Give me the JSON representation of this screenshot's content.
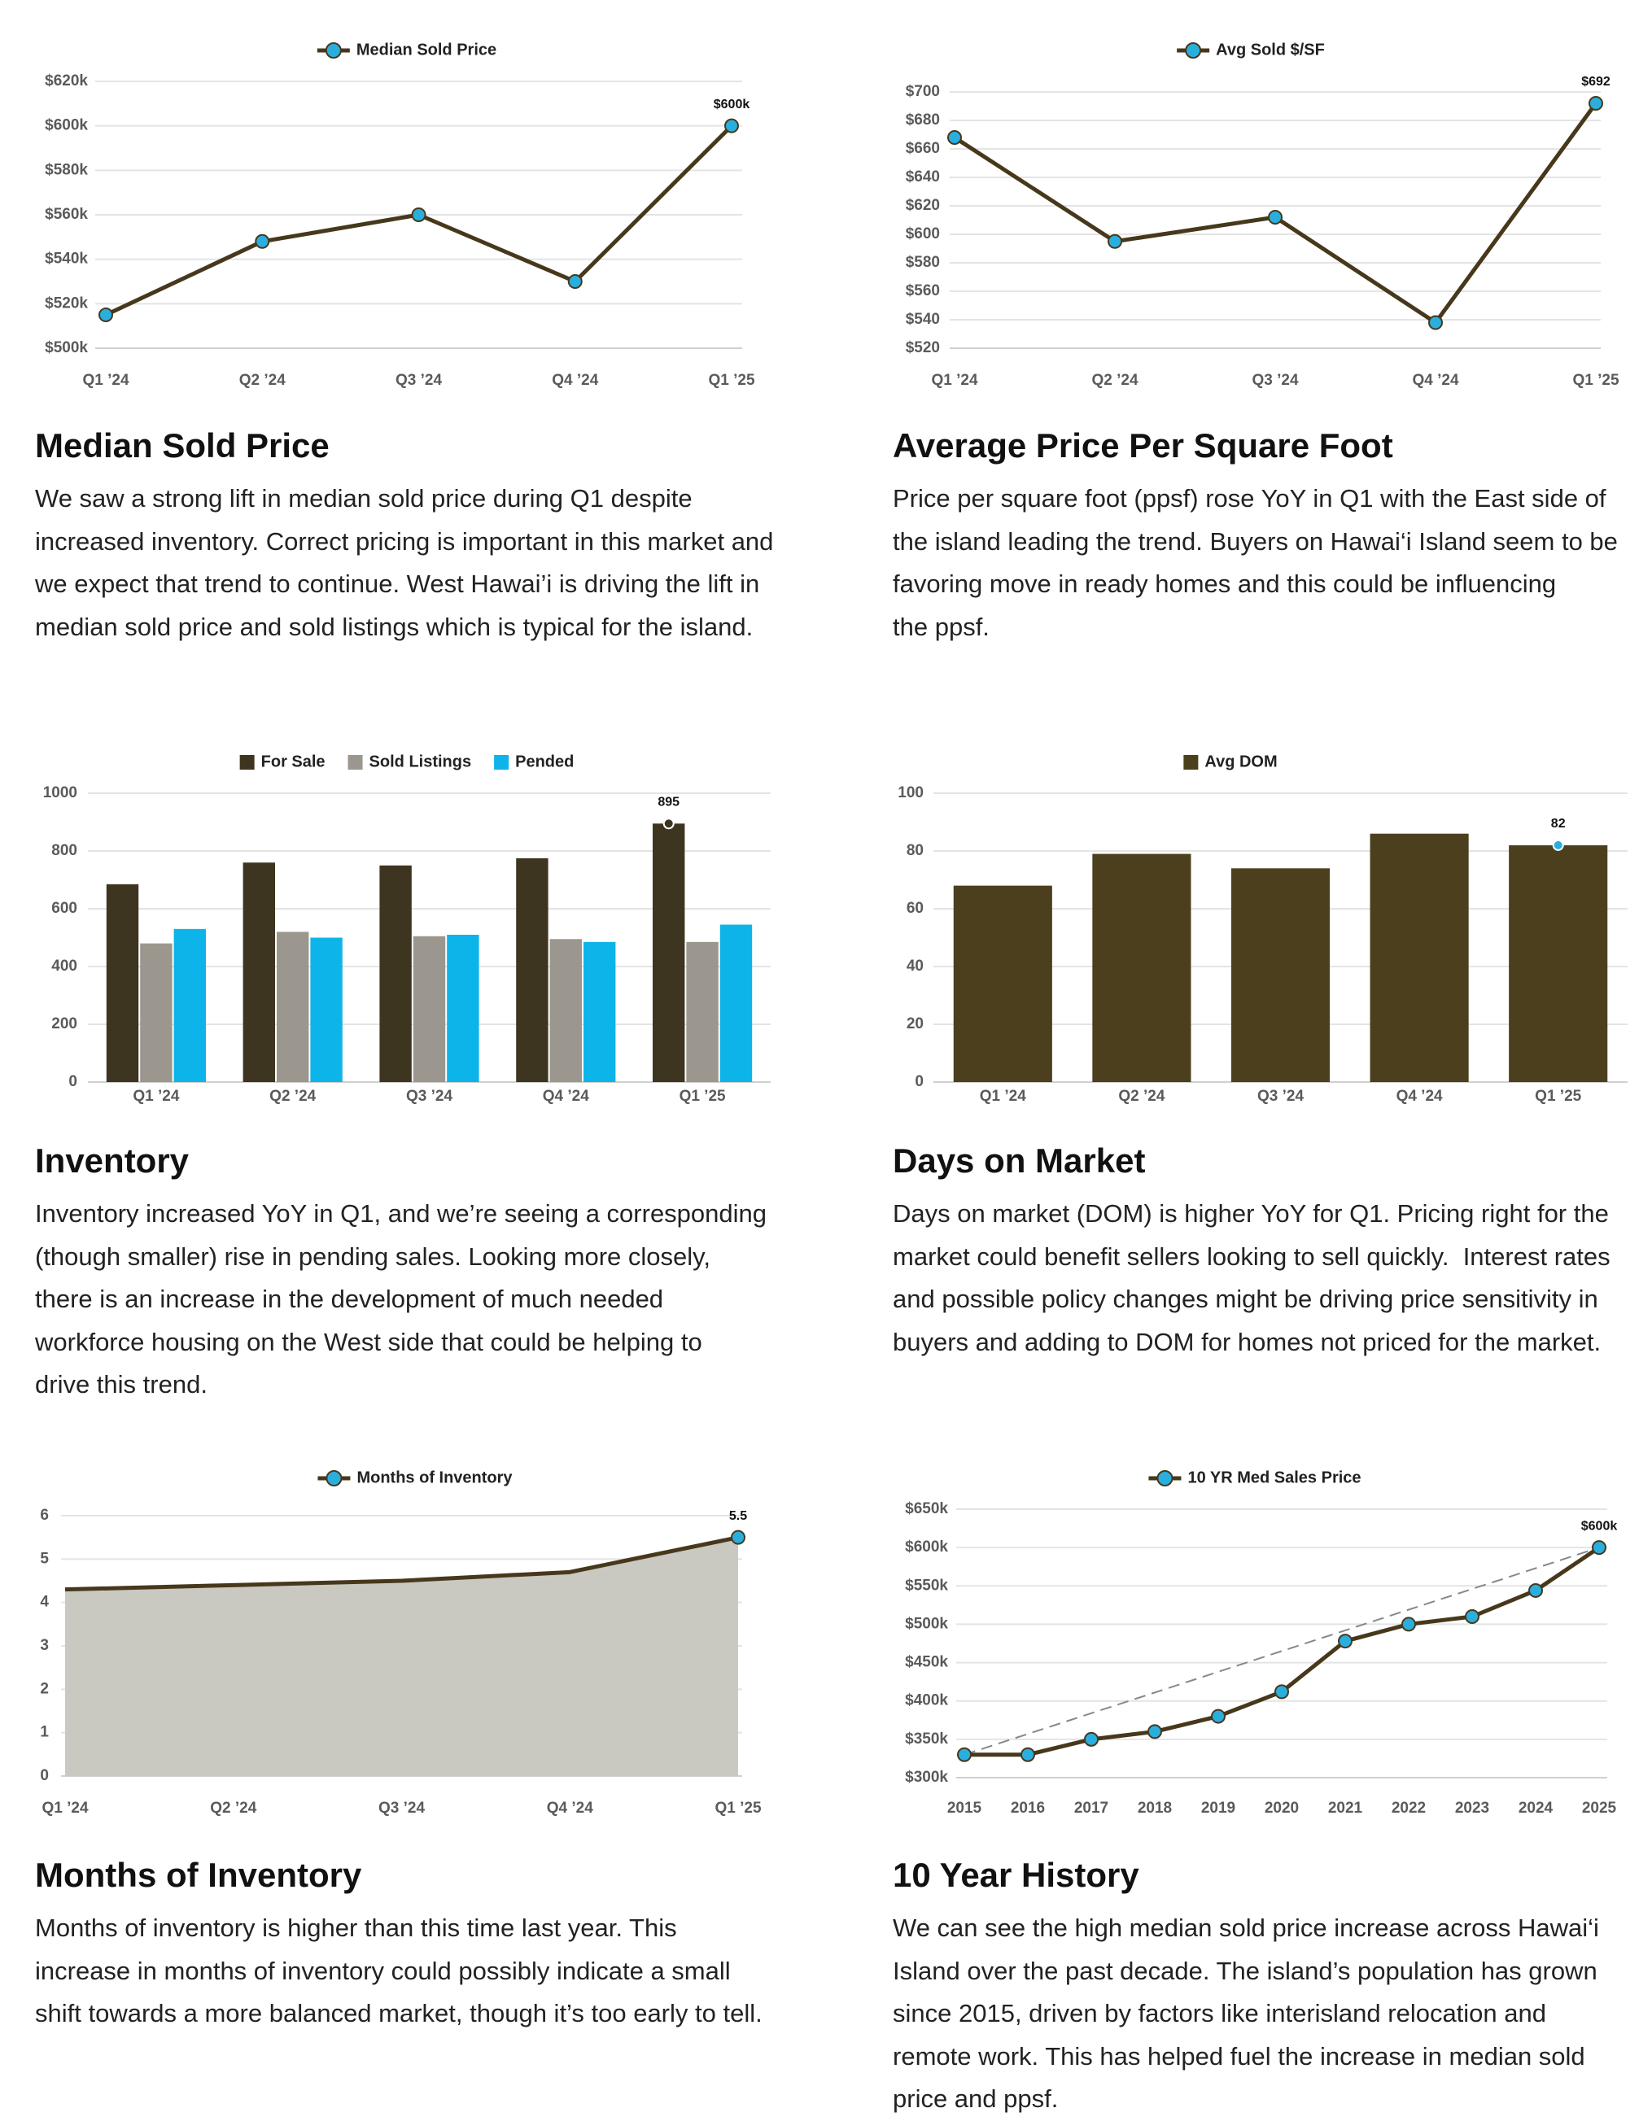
{
  "chart_data": [
    {
      "type": "line",
      "categories": [
        "Q1 ’24",
        "Q2 ’24",
        "Q3 ’24",
        "Q4 ’24",
        "Q1 ’25"
      ],
      "series": [
        {
          "name": "Median Sold Price",
          "color": "#47381c",
          "values": [
            515000,
            548000,
            560000,
            530000,
            600000
          ],
          "value_labels": [
            null,
            null,
            null,
            null,
            "$600k"
          ]
        }
      ],
      "ylim": [
        500000,
        620000
      ],
      "yticks": [
        {
          "value": 500000,
          "label": "$500k"
        },
        {
          "value": 520000,
          "label": "$520k"
        },
        {
          "value": 540000,
          "label": "$540k"
        },
        {
          "value": 560000,
          "label": "$560k"
        },
        {
          "value": 580000,
          "label": "$580k"
        },
        {
          "value": 600000,
          "label": "$600k"
        },
        {
          "value": 620000,
          "label": "$620k"
        }
      ],
      "grid": true,
      "legend": "top",
      "markers": "all",
      "marker_color": "#2aaede"
    },
    {
      "type": "line",
      "categories": [
        "Q1 ’24",
        "Q2 ’24",
        "Q3 ’24",
        "Q4 ’24",
        "Q1 ’25"
      ],
      "series": [
        {
          "name": "Avg Sold $/SF",
          "color": "#47381c",
          "values": [
            668,
            595,
            612,
            538,
            692
          ],
          "value_labels": [
            null,
            null,
            null,
            null,
            "$692"
          ]
        }
      ],
      "ylim": [
        520,
        700
      ],
      "yticks": [
        {
          "value": 520,
          "label": "$520"
        },
        {
          "value": 540,
          "label": "$540"
        },
        {
          "value": 560,
          "label": "$560"
        },
        {
          "value": 580,
          "label": "$580"
        },
        {
          "value": 600,
          "label": "$600"
        },
        {
          "value": 620,
          "label": "$620"
        },
        {
          "value": 640,
          "label": "$640"
        },
        {
          "value": 660,
          "label": "$660"
        },
        {
          "value": 680,
          "label": "$680"
        },
        {
          "value": 700,
          "label": "$700"
        }
      ],
      "grid": true,
      "legend": "top",
      "markers": "all",
      "marker_color": "#2aaede"
    },
    {
      "type": "bar",
      "categories": [
        "Q1 ’24",
        "Q2 ’24",
        "Q3 ’24",
        "Q4 ’24",
        "Q1 ’25"
      ],
      "series": [
        {
          "name": "For Sale",
          "color": "#3d3520",
          "values": [
            685,
            760,
            750,
            775,
            895
          ],
          "value_labels": [
            null,
            null,
            null,
            null,
            "895"
          ]
        },
        {
          "name": "Sold Listings",
          "color": "#9b978e",
          "values": [
            480,
            520,
            505,
            495,
            485
          ]
        },
        {
          "name": "Pended",
          "color": "#0db4e9",
          "values": [
            530,
            500,
            510,
            485,
            545
          ]
        }
      ],
      "ylim": [
        0,
        1000
      ],
      "yticks": [
        0,
        200,
        400,
        600,
        800,
        1000
      ],
      "grid": true,
      "legend": "top",
      "markers": "labeled",
      "marker_color": "#3d3520"
    },
    {
      "type": "bar",
      "categories": [
        "Q1 ’24",
        "Q2 ’24",
        "Q3 ’24",
        "Q4 ’24",
        "Q1 ’25"
      ],
      "series": [
        {
          "name": "Avg DOM",
          "color": "#4b3f1e",
          "values": [
            68,
            79,
            74,
            86,
            82
          ],
          "value_labels": [
            null,
            null,
            null,
            null,
            "82"
          ]
        }
      ],
      "ylim": [
        0,
        100
      ],
      "yticks": [
        0,
        20,
        40,
        60,
        80,
        100
      ],
      "grid": true,
      "legend": "top",
      "markers": "labeled",
      "marker_color": "#2aaede"
    },
    {
      "type": "area",
      "categories": [
        "Q1 ’24",
        "Q2 ’24",
        "Q3 ’24",
        "Q4 ’24",
        "Q1 ’25"
      ],
      "series": [
        {
          "name": "Months of Inventory",
          "color": "#47381c",
          "fill": "#c9c8c1",
          "values": [
            4.3,
            4.4,
            4.5,
            4.7,
            5.5
          ],
          "value_labels": [
            null,
            null,
            null,
            null,
            "5.5"
          ]
        }
      ],
      "ylim": [
        0,
        6
      ],
      "yticks": [
        0,
        1,
        2,
        3,
        4,
        5,
        6
      ],
      "grid": true,
      "legend": "top",
      "markers": "labeled",
      "marker_color": "#2aaede"
    },
    {
      "type": "line",
      "x": [
        2015,
        2016,
        2017,
        2018,
        2019,
        2020,
        2021,
        2022,
        2023,
        2024,
        2025
      ],
      "xlim": [
        2015,
        2025
      ],
      "xticks": [
        2015,
        2016,
        2017,
        2018,
        2019,
        2020,
        2021,
        2022,
        2023,
        2024,
        2025
      ],
      "series": [
        {
          "name": "10 YR Med Sales Price",
          "color": "#47381c",
          "values": [
            330000,
            330000,
            350000,
            360000,
            380000,
            412000,
            478000,
            500000,
            510000,
            544000,
            600000
          ],
          "value_labels": [
            null,
            null,
            null,
            null,
            null,
            null,
            null,
            null,
            null,
            null,
            "$600k"
          ]
        }
      ],
      "ylim": [
        300000,
        650000
      ],
      "yticks": [
        {
          "value": 300000,
          "label": "$300k"
        },
        {
          "value": 350000,
          "label": "$350k"
        },
        {
          "value": 400000,
          "label": "$400k"
        },
        {
          "value": 450000,
          "label": "$450k"
        },
        {
          "value": 500000,
          "label": "$500k"
        },
        {
          "value": 550000,
          "label": "$550k"
        },
        {
          "value": 600000,
          "label": "$600k"
        },
        {
          "value": 650000,
          "label": "$650k"
        }
      ],
      "grid": true,
      "legend": "top",
      "markers": "all",
      "marker_color": "#2aaede",
      "trend_line": true
    }
  ],
  "sections": [
    {
      "heading": "Median Sold Price",
      "lines": [
        "We saw a strong lift in median sold price during Q1 despite",
        "increased inventory. Correct pricing is important in this market and",
        "we expect that trend to continue. West Hawai’i is driving the lift in",
        "median sold price and sold listings which is typical for the island."
      ]
    },
    {
      "heading": "Average Price Per Square Foot",
      "lines": [
        "Price per square foot (ppsf) rose YoY in Q1 with the East side of",
        "the island leading the trend. Buyers on Hawai‘i Island seem to be",
        "favoring move in ready homes and this could be influencing",
        "the ppsf."
      ]
    },
    {
      "heading": "Inventory",
      "lines": [
        "Inventory increased YoY in Q1, and we’re seeing a corresponding",
        "(though smaller) rise in pending sales. Looking more closely,",
        "there is an increase in the development of much needed",
        "workforce housing on the West side that could be helping to",
        "drive this trend."
      ]
    },
    {
      "heading": "Days on Market",
      "lines": [
        "Days on market (DOM) is higher YoY for Q1. Pricing right for the",
        "market could benefit sellers looking to sell quickly.  Interest rates",
        "and possible policy changes might be driving price sensitivity in",
        "buyers and adding to DOM for homes not priced for the market."
      ]
    },
    {
      "heading": "Months of Inventory",
      "lines": [
        "Months of inventory is higher than this time last year. This",
        "increase in months of inventory could possibly indicate a small",
        "shift towards a more balanced market, though it’s too early to tell."
      ]
    },
    {
      "heading": "10 Year History",
      "lines": [
        "We can see the high median sold price increase across Hawai‘i",
        "Island over the past decade. The island’s population has grown",
        "since 2015, driven by factors like interisland relocation and",
        "remote work. This has helped fuel the increase in median sold",
        "price and ppsf."
      ]
    }
  ]
}
